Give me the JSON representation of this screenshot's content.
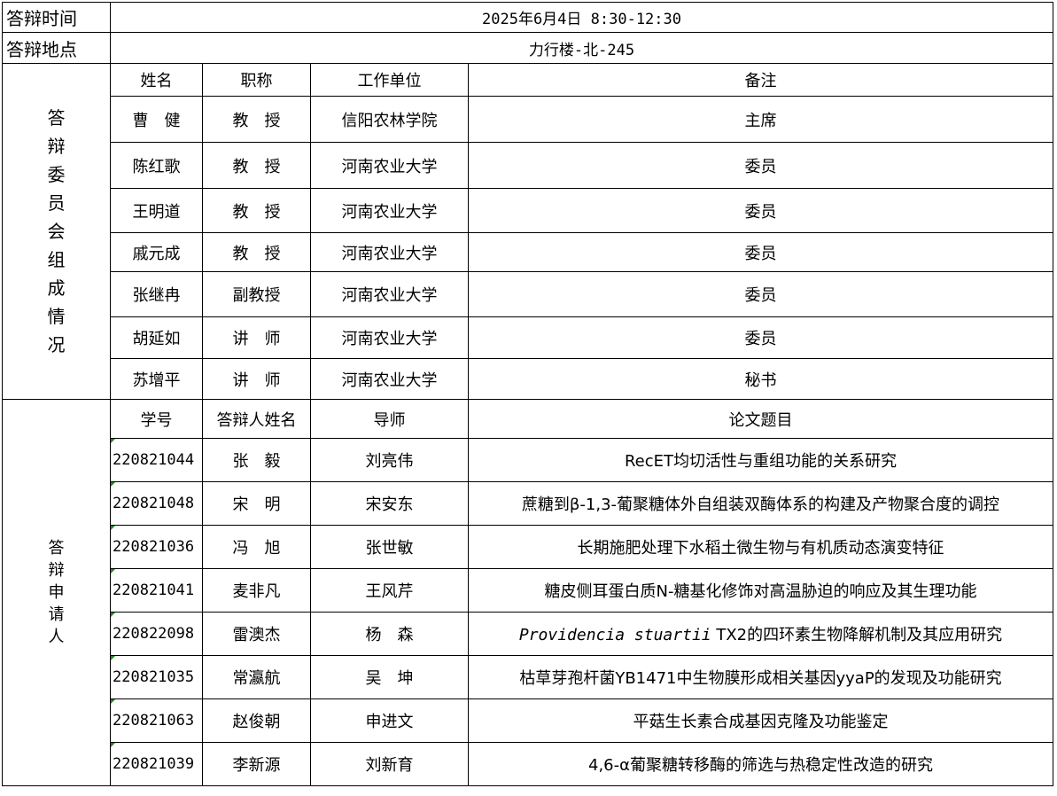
{
  "header": {
    "time_label": "答辩时间",
    "time_value": "2025年6月4日 8:30-12:30",
    "place_label": "答辩地点",
    "place_value": "力行楼-北-245"
  },
  "committee": {
    "section_label": "答\n辩\n委\n员\n会\n组\n成\n情\n况",
    "columns": [
      "姓名",
      "职称",
      "工作单位",
      "备注"
    ],
    "rows": [
      [
        "曹　健",
        "教　授",
        "信阳农林学院",
        "主席"
      ],
      [
        "陈红歌",
        "教　授",
        "河南农业大学",
        "委员"
      ],
      [
        "王明道",
        "教　授",
        "河南农业大学",
        "委员"
      ],
      [
        "戚元成",
        "教　授",
        "河南农业大学",
        "委员"
      ],
      [
        "张继冉",
        "副教授",
        "河南农业大学",
        "委员"
      ],
      [
        "胡延如",
        "讲　师",
        "河南农业大学",
        "委员"
      ],
      [
        "苏增平",
        "讲　师",
        "河南农业大学",
        "秘书"
      ]
    ]
  },
  "applicants": {
    "section_label": "答\n辩\n申\n请\n人",
    "columns": [
      "学号",
      "答辩人姓名",
      "导师",
      "论文题目"
    ],
    "rows": [
      [
        "220821044",
        "张　毅",
        "刘亮伟",
        "RecET均切活性与重组功能的关系研究"
      ],
      [
        "220821048",
        "宋　明",
        "宋安东",
        "蔗糖到β-1,3-葡聚糖体外自组装双酶体系的构建及产物聚合度的调控"
      ],
      [
        "220821036",
        "冯　旭",
        "张世敏",
        "长期施肥处理下水稻土微生物与有机质动态演变特征"
      ],
      [
        "220821041",
        "麦非凡",
        "王风芹",
        "糖皮侧耳蛋白质N-糖基化修饰对高温胁迫的响应及其生理功能"
      ],
      [
        "220822098",
        "雷澳杰",
        "杨　森",
        "Providencia stuartii TX2的四环素生物降解机制及其应用研究"
      ],
      [
        "220821035",
        "常瀛航",
        "吴　坤",
        "枯草芽孢杆菌YB1471中生物膜形成相关基因yyaP的发现及功能研究"
      ],
      [
        "220821063",
        "赵俊朝",
        "申进文",
        "平菇生长素合成基因克隆及功能鉴定"
      ],
      [
        "220821039",
        "李新源",
        "刘新育",
        "4,6-α葡聚糖转移酶的筛选与热稳定性改造的研究"
      ]
    ]
  }
}
